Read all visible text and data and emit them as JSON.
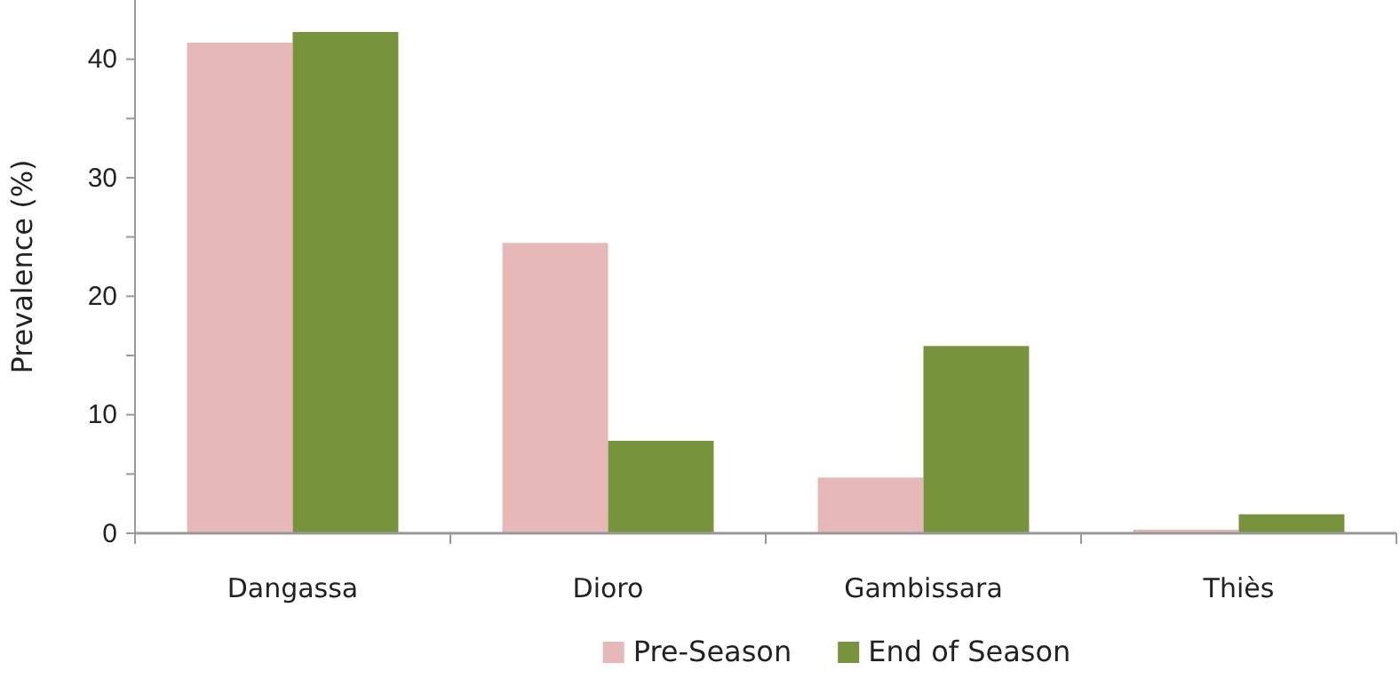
{
  "chart_data": {
    "type": "bar",
    "ylabel": "Prevalence (%)",
    "categories": [
      "Dangassa",
      "Dioro",
      "Gambissara",
      "Thiès"
    ],
    "series": [
      {
        "name": "Pre-Season",
        "color": "#e6b9b8",
        "values": [
          41.4,
          24.5,
          4.7,
          0.3
        ]
      },
      {
        "name": "End of Season",
        "color": "#77933c",
        "values": [
          42.3,
          7.8,
          15.8,
          1.6
        ]
      }
    ],
    "ylim": [
      0,
      45
    ],
    "yticks": [
      0,
      {
        "value": 5,
        "label": null
      },
      10,
      {
        "value": 15,
        "label": null
      },
      20,
      {
        "value": 25,
        "label": null
      },
      30,
      {
        "value": 35,
        "label": null
      },
      40
    ],
    "grid": false,
    "legend": "bottom"
  }
}
